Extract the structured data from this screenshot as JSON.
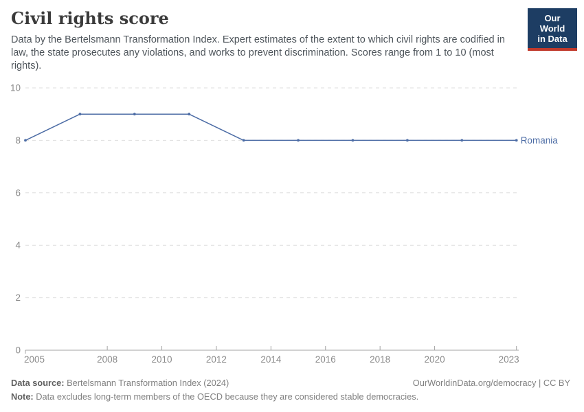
{
  "header": {
    "title": "Civil rights score",
    "subtitle": "Data by the Bertelsmann Transformation Index. Expert estimates of the extent to which civil rights are codified in law, the state prosecutes any violations, and works to prevent discrimination. Scores range from 1 to 10 (most rights)."
  },
  "logo": {
    "line1": "Our World",
    "line2": "in Data",
    "bg_color": "#1d3d63",
    "accent_color": "#c0392b"
  },
  "chart_data": {
    "type": "line",
    "title": "Civil rights score",
    "series": [
      {
        "name": "Romania",
        "color": "#4c6ca5",
        "x": [
          2005,
          2007,
          2009,
          2011,
          2013,
          2015,
          2017,
          2019,
          2021,
          2023
        ],
        "values": [
          8,
          9,
          9,
          9,
          8,
          8,
          8,
          8,
          8,
          8
        ]
      }
    ],
    "entity_label": "Romania",
    "xlim": [
      2005,
      2023
    ],
    "ylim": [
      0,
      10
    ],
    "xticks": [
      2005,
      2008,
      2010,
      2012,
      2014,
      2016,
      2018,
      2020,
      2023
    ],
    "yticks": [
      0,
      2,
      4,
      6,
      8,
      10
    ],
    "grid": "horizontal-dashed",
    "legend_position": "end-of-line",
    "grid_color": "#dedede",
    "axis_color": "#a3a3a3",
    "tick_label_color": "#8b8b8b"
  },
  "footer": {
    "source_label": "Data source:",
    "source_text": "Bertelsmann Transformation Index (2024)",
    "url_text": "OurWorldinData.org/democracy | CC BY",
    "note_label": "Note:",
    "note_text": "Data excludes long-term members of the OECD because they are considered stable democracies."
  }
}
